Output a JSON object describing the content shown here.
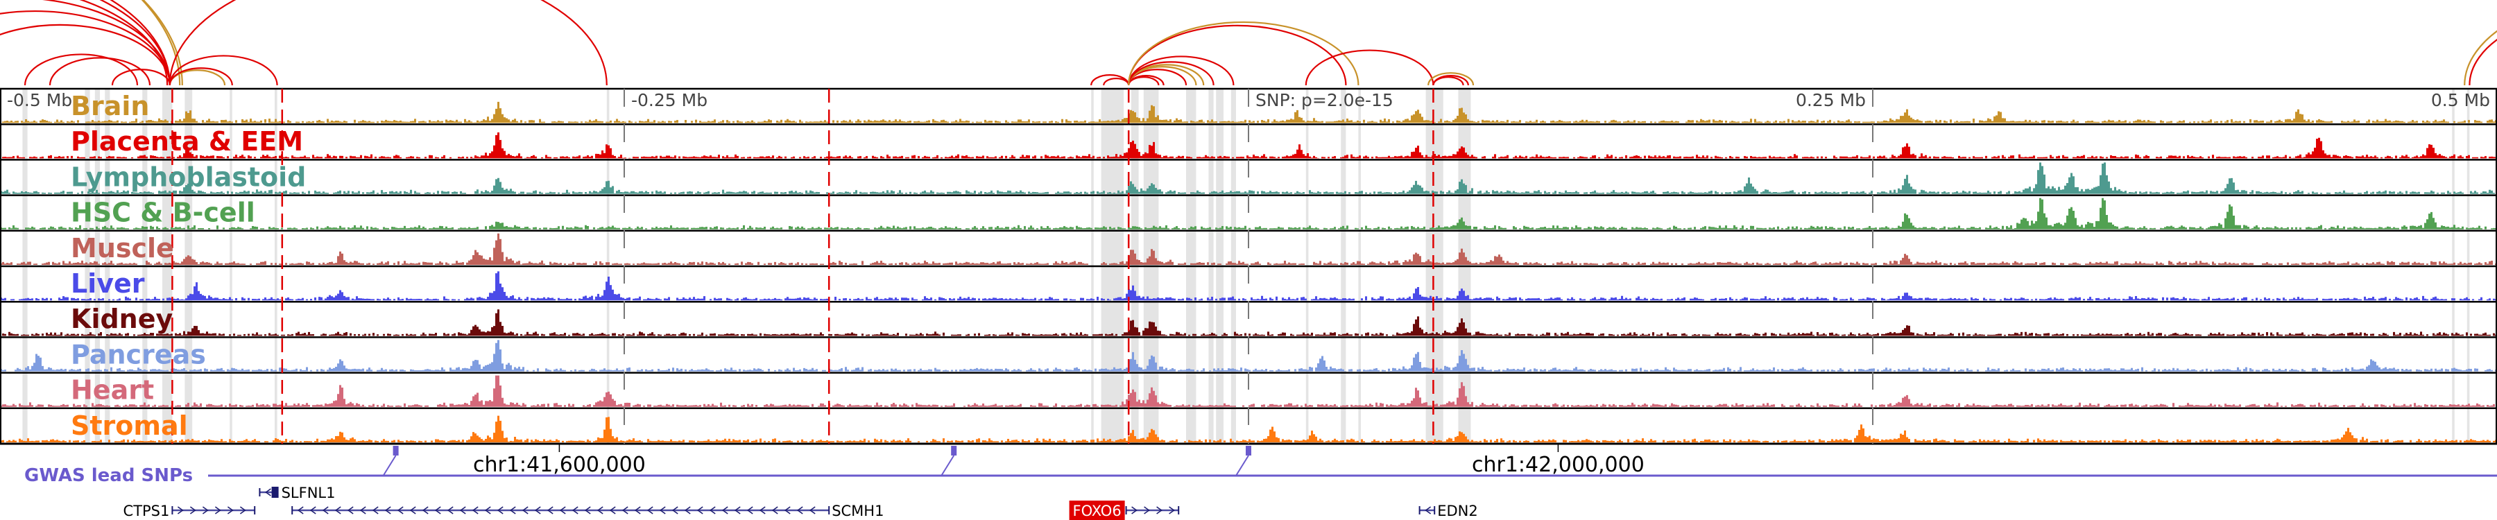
{
  "scale": {
    "labels": [
      {
        "text": "-0.5 Mb",
        "mb": -0.5,
        "anchor": "start"
      },
      {
        "text": "-0.25 Mb",
        "mb": -0.25,
        "anchor": "start"
      },
      {
        "text": "SNP: p=2.0e-15",
        "mb": 0,
        "anchor": "start"
      },
      {
        "text": "0.25 Mb",
        "mb": 0.25,
        "anchor": "end"
      },
      {
        "text": "0.5 Mb",
        "mb": 0.5,
        "anchor": "end"
      }
    ]
  },
  "tracks": [
    {
      "label": "Brain",
      "color": "#c8922a",
      "peaks": [
        [
          -0.301,
          0.55
        ],
        [
          -0.425,
          0.4
        ],
        [
          -0.047,
          0.5
        ],
        [
          -0.039,
          0.55
        ],
        [
          0.019,
          0.3
        ],
        [
          0.067,
          0.35
        ],
        [
          0.085,
          0.4
        ],
        [
          0.42,
          0.4
        ],
        [
          0.263,
          0.35
        ],
        [
          0.3,
          0.3
        ]
      ]
    },
    {
      "label": "Placenta & EEM",
      "color": "#e00000",
      "peaks": [
        [
          -0.301,
          0.8
        ],
        [
          -0.257,
          0.4
        ],
        [
          -0.425,
          0.3
        ],
        [
          -0.047,
          0.5
        ],
        [
          -0.039,
          0.45
        ],
        [
          0.02,
          0.35
        ],
        [
          0.067,
          0.35
        ],
        [
          0.085,
          0.35
        ],
        [
          0.428,
          0.7
        ],
        [
          0.473,
          0.45
        ],
        [
          0.263,
          0.45
        ]
      ]
    },
    {
      "label": "Lymphoblastoid",
      "color": "#4e9a8f",
      "peaks": [
        [
          -0.301,
          0.45
        ],
        [
          -0.257,
          0.35
        ],
        [
          -0.425,
          0.3
        ],
        [
          -0.047,
          0.35
        ],
        [
          -0.039,
          0.3
        ],
        [
          0.067,
          0.4
        ],
        [
          0.085,
          0.4
        ],
        [
          0.317,
          1.0
        ],
        [
          0.342,
          1.0
        ],
        [
          0.329,
          0.55
        ],
        [
          0.263,
          0.5
        ],
        [
          0.393,
          0.5
        ],
        [
          0.2,
          0.4
        ]
      ]
    },
    {
      "label": "HSC & B-cell",
      "color": "#52a152",
      "peaks": [
        [
          -0.301,
          0.2
        ],
        [
          0.317,
          1.0
        ],
        [
          0.342,
          0.95
        ],
        [
          0.329,
          0.7
        ],
        [
          0.393,
          0.8
        ],
        [
          0.263,
          0.4
        ],
        [
          0.31,
          0.3
        ],
        [
          0.473,
          0.5
        ],
        [
          0.085,
          0.3
        ]
      ]
    },
    {
      "label": "Muscle",
      "color": "#c0625a",
      "peaks": [
        [
          -0.301,
          0.95
        ],
        [
          -0.31,
          0.4
        ],
        [
          -0.425,
          0.3
        ],
        [
          -0.364,
          0.3
        ],
        [
          -0.047,
          0.4
        ],
        [
          -0.039,
          0.45
        ],
        [
          0.067,
          0.4
        ],
        [
          0.085,
          0.45
        ],
        [
          0.1,
          0.3
        ],
        [
          0.263,
          0.3
        ]
      ]
    },
    {
      "label": "Liver",
      "color": "#4b4be8",
      "peaks": [
        [
          -0.301,
          0.85
        ],
        [
          -0.257,
          0.85
        ],
        [
          -0.422,
          0.45
        ],
        [
          -0.364,
          0.3
        ],
        [
          -0.047,
          0.4
        ],
        [
          0.067,
          0.3
        ],
        [
          0.085,
          0.3
        ],
        [
          0.263,
          0.25
        ]
      ]
    },
    {
      "label": "Kidney",
      "color": "#6b0b0b",
      "peaks": [
        [
          -0.301,
          0.7
        ],
        [
          -0.31,
          0.3
        ],
        [
          -0.422,
          0.3
        ],
        [
          -0.047,
          0.4
        ],
        [
          -0.039,
          0.45
        ],
        [
          0.067,
          0.5
        ],
        [
          0.085,
          0.5
        ],
        [
          0.263,
          0.25
        ]
      ]
    },
    {
      "label": "Pancreas",
      "color": "#7f9de0",
      "peaks": [
        [
          -0.301,
          1.0
        ],
        [
          -0.31,
          0.3
        ],
        [
          -0.364,
          0.3
        ],
        [
          -0.485,
          0.55
        ],
        [
          -0.047,
          0.5
        ],
        [
          -0.039,
          0.45
        ],
        [
          0.029,
          0.4
        ],
        [
          0.067,
          0.55
        ],
        [
          0.085,
          0.6
        ],
        [
          0.45,
          0.35
        ]
      ]
    },
    {
      "label": "Heart",
      "color": "#d4697a",
      "peaks": [
        [
          -0.301,
          1.0
        ],
        [
          -0.31,
          0.4
        ],
        [
          -0.364,
          0.6
        ],
        [
          -0.257,
          0.5
        ],
        [
          -0.047,
          0.5
        ],
        [
          -0.039,
          0.6
        ],
        [
          0.067,
          0.5
        ],
        [
          0.085,
          0.7
        ],
        [
          0.263,
          0.3
        ]
      ]
    },
    {
      "label": "Stromal",
      "color": "#ff7a10",
      "peaks": [
        [
          -0.301,
          0.85
        ],
        [
          -0.257,
          0.7
        ],
        [
          -0.364,
          0.3
        ],
        [
          -0.31,
          0.3
        ],
        [
          -0.047,
          0.3
        ],
        [
          -0.039,
          0.35
        ],
        [
          0.009,
          0.4
        ],
        [
          0.025,
          0.35
        ],
        [
          0.085,
          0.35
        ],
        [
          0.245,
          0.5
        ],
        [
          0.44,
          0.4
        ],
        [
          0.262,
          0.3
        ]
      ]
    }
  ],
  "red_lines_mb": [
    -0.431,
    -0.387,
    -0.168,
    -0.048,
    0.074
  ],
  "highlight_regions_mb": [
    [
      -0.491,
      -0.489
    ],
    [
      -0.466,
      -0.464
    ],
    [
      -0.462,
      -0.46
    ],
    [
      -0.458,
      -0.456
    ],
    [
      -0.443,
      -0.441
    ],
    [
      -0.435,
      -0.431
    ],
    [
      -0.426,
      -0.423
    ],
    [
      -0.408,
      -0.407
    ],
    [
      -0.39,
      -0.389
    ],
    [
      -0.257,
      -0.256
    ],
    [
      -0.063,
      -0.062
    ],
    [
      -0.059,
      -0.05
    ],
    [
      -0.047,
      -0.044
    ],
    [
      -0.042,
      -0.036
    ],
    [
      -0.025,
      -0.021
    ],
    [
      -0.016,
      -0.014
    ],
    [
      -0.013,
      -0.01
    ],
    [
      -0.007,
      -0.005
    ],
    [
      0.023,
      0.024
    ],
    [
      0.037,
      0.039
    ],
    [
      0.044,
      0.045
    ],
    [
      0.071,
      0.078
    ],
    [
      0.084,
      0.089
    ],
    [
      0.482,
      0.483
    ],
    [
      0.488,
      0.489
    ]
  ],
  "arcs": [
    {
      "from": -0.62,
      "to": -0.432,
      "color": "#e00000"
    },
    {
      "from": -0.6,
      "to": -0.432,
      "color": "#e00000"
    },
    {
      "from": -0.58,
      "to": -0.433,
      "color": "#e00000"
    },
    {
      "from": -0.56,
      "to": -0.432,
      "color": "#e00000"
    },
    {
      "from": -0.54,
      "to": -0.432,
      "color": "#e00000"
    },
    {
      "from": -0.7,
      "to": -0.428,
      "color": "#c8922a"
    },
    {
      "from": -0.69,
      "to": -0.427,
      "color": "#c8922a"
    },
    {
      "from": -0.52,
      "to": -0.432,
      "color": "#e00000"
    },
    {
      "from": -0.49,
      "to": -0.445,
      "color": "#e00000"
    },
    {
      "from": -0.48,
      "to": -0.44,
      "color": "#e00000"
    },
    {
      "from": -0.455,
      "to": -0.432,
      "color": "#e00000"
    },
    {
      "from": -0.432,
      "to": -0.41,
      "color": "#c8922a"
    },
    {
      "from": -0.432,
      "to": -0.407,
      "color": "#e00000"
    },
    {
      "from": -0.432,
      "to": -0.389,
      "color": "#e00000"
    },
    {
      "from": -0.432,
      "to": -0.257,
      "color": "#e00000"
    },
    {
      "from": -0.063,
      "to": -0.048,
      "color": "#e00000"
    },
    {
      "from": -0.058,
      "to": -0.048,
      "color": "#e00000"
    },
    {
      "from": -0.048,
      "to": -0.036,
      "color": "#e00000"
    },
    {
      "from": -0.048,
      "to": -0.034,
      "color": "#e00000"
    },
    {
      "from": -0.048,
      "to": -0.025,
      "color": "#e00000"
    },
    {
      "from": -0.048,
      "to": -0.021,
      "color": "#c8922a"
    },
    {
      "from": -0.048,
      "to": -0.018,
      "color": "#c8922a"
    },
    {
      "from": -0.048,
      "to": -0.014,
      "color": "#e00000"
    },
    {
      "from": -0.048,
      "to": -0.006,
      "color": "#e00000"
    },
    {
      "from": -0.048,
      "to": 0.039,
      "color": "#e00000"
    },
    {
      "from": -0.048,
      "to": 0.044,
      "color": "#c8922a"
    },
    {
      "from": 0.023,
      "to": 0.074,
      "color": "#e00000"
    },
    {
      "from": 0.072,
      "to": 0.09,
      "color": "#c8922a"
    },
    {
      "from": 0.074,
      "to": 0.088,
      "color": "#e00000"
    },
    {
      "from": 0.074,
      "to": 0.086,
      "color": "#e00000"
    },
    {
      "from": 0.487,
      "to": 0.62,
      "color": "#c8922a"
    },
    {
      "from": 0.489,
      "to": 0.6,
      "color": "#e00000"
    }
  ],
  "coordinates": [
    {
      "text": "chr1:41,600,000",
      "mb": -0.276
    },
    {
      "text": "chr1:42,000,000",
      "mb": 0.124
    }
  ],
  "gwas": {
    "label": "GWAS lead SNPs",
    "color": "#6a5acd",
    "snps_mb": [
      -0.3415,
      -0.118,
      0.0
    ]
  },
  "genes": [
    {
      "name": "SLFNL1",
      "start": -0.396,
      "end": -0.389,
      "strand": "-",
      "row": 0,
      "highlight": false
    },
    {
      "name": "CTPS1",
      "start": -0.431,
      "end": -0.398,
      "strand": "+",
      "row": 1,
      "highlight": false
    },
    {
      "name": "SCMH1",
      "start": -0.383,
      "end": -0.168,
      "strand": "-",
      "row": 1,
      "highlight": false
    },
    {
      "name": "FOXO6",
      "start": -0.049,
      "end": -0.028,
      "strand": "+",
      "row": 1,
      "highlight": true
    },
    {
      "name": "EDN2",
      "start": 0.0685,
      "end": 0.0745,
      "strand": "-",
      "row": 1,
      "highlight": false
    }
  ]
}
